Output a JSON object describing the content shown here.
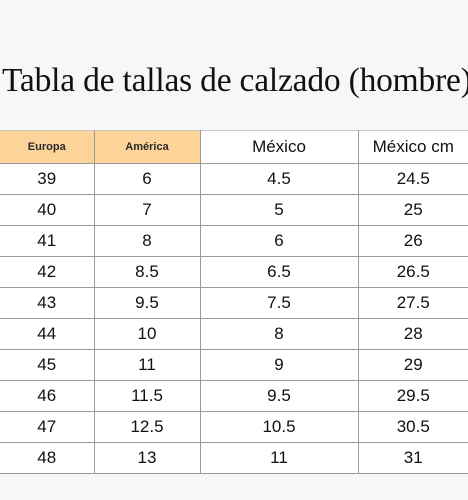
{
  "title": "Tabla de tallas de calzado (hombre)",
  "accent_color": "#fcd49a",
  "headers": [
    "Europa",
    "América",
    "México",
    "México cm"
  ],
  "rows": [
    [
      "39",
      "6",
      "4.5",
      "24.5"
    ],
    [
      "40",
      "7",
      "5",
      "25"
    ],
    [
      "41",
      "8",
      "6",
      "26"
    ],
    [
      "42",
      "8.5",
      "6.5",
      "26.5"
    ],
    [
      "43",
      "9.5",
      "7.5",
      "27.5"
    ],
    [
      "44",
      "10",
      "8",
      "28"
    ],
    [
      "45",
      "11",
      "9",
      "29"
    ],
    [
      "46",
      "11.5",
      "9.5",
      "29.5"
    ],
    [
      "47",
      "12.5",
      "10.5",
      "30.5"
    ],
    [
      "48",
      "13",
      "11",
      "31"
    ]
  ]
}
